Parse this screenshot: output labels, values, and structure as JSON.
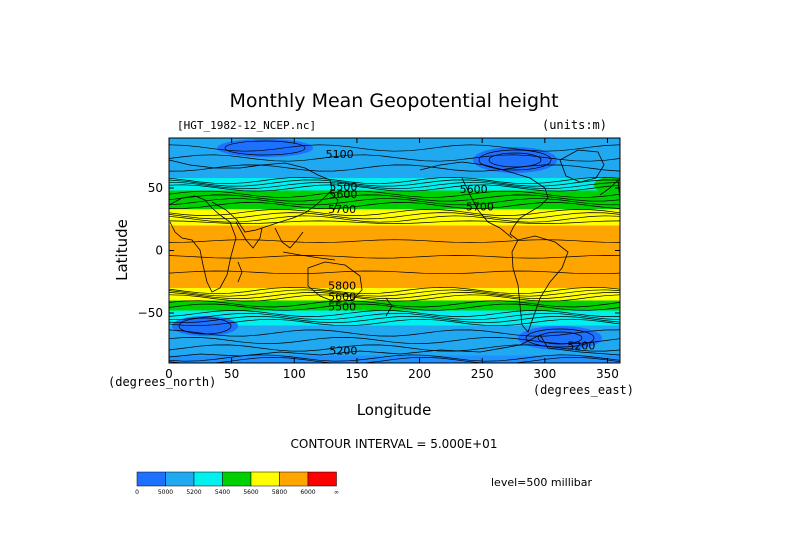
{
  "chart_data": {
    "type": "heatmap",
    "title": "Monthly Mean Geopotential height",
    "file_label": "[HGT_1982-12_NCEP.nc]",
    "units_label": "(units:m)",
    "xlabel": "Longitude",
    "ylabel": "Latitude",
    "x_unit_label": "(degrees_east)",
    "y_unit_label": "(degrees_north)",
    "xlim": [
      0,
      360
    ],
    "ylim": [
      -90,
      90
    ],
    "x_ticks": [
      0,
      50,
      100,
      150,
      200,
      250,
      300,
      350
    ],
    "y_ticks": [
      -50,
      0,
      50
    ],
    "contour_interval_label": "CONTOUR INTERVAL = 5.000E+01",
    "level_label": "level=500 millibar",
    "contour_labels": [
      {
        "text": "5100",
        "lon": 125,
        "lat": 74
      },
      {
        "text": "5500",
        "lon": 128,
        "lat": 48
      },
      {
        "text": "5600",
        "lon": 128,
        "lat": 42
      },
      {
        "text": "5700",
        "lon": 127,
        "lat": 30
      },
      {
        "text": "5600",
        "lon": 232,
        "lat": 46
      },
      {
        "text": "5700",
        "lon": 237,
        "lat": 32
      },
      {
        "text": "5800",
        "lon": 127,
        "lat": -31
      },
      {
        "text": "5600",
        "lon": 127,
        "lat": -40
      },
      {
        "text": "5500",
        "lon": 127,
        "lat": -48
      },
      {
        "text": "5200",
        "lon": 128,
        "lat": -83
      },
      {
        "text": "5200",
        "lon": 318,
        "lat": -79
      }
    ],
    "color_bands": [
      {
        "lo": -90,
        "hi": -84,
        "value": 5125,
        "color": "#1e90ff"
      },
      {
        "lo": -84,
        "hi": -60,
        "value": 5175,
        "color": "#20a8f0"
      },
      {
        "lo": -60,
        "hi": -48,
        "value": 5275,
        "color": "#00f0f0"
      },
      {
        "lo": -48,
        "hi": -40,
        "value": 5475,
        "color": "#00d000"
      },
      {
        "lo": -40,
        "hi": -30,
        "value": 5650,
        "color": "#ffff00"
      },
      {
        "lo": -30,
        "hi": 20,
        "value": 5825,
        "color": "#ffa500"
      },
      {
        "lo": 20,
        "hi": 33,
        "value": 5650,
        "color": "#ffff00"
      },
      {
        "lo": 33,
        "hi": 48,
        "value": 5475,
        "color": "#00d000"
      },
      {
        "lo": 48,
        "hi": 58,
        "value": 5275,
        "color": "#00f0f0"
      },
      {
        "lo": 58,
        "hi": 90,
        "value": 5175,
        "color": "#20a8f0"
      }
    ],
    "legend": {
      "colors": [
        "#1e70ff",
        "#20a8f0",
        "#00f0f0",
        "#00d000",
        "#ffff00",
        "#ffa500",
        "#ff0000"
      ],
      "tick_labels": [
        "0",
        "5000",
        "5200",
        "5400",
        "5600",
        "5800",
        "6000",
        "∞"
      ]
    },
    "grid": false
  }
}
